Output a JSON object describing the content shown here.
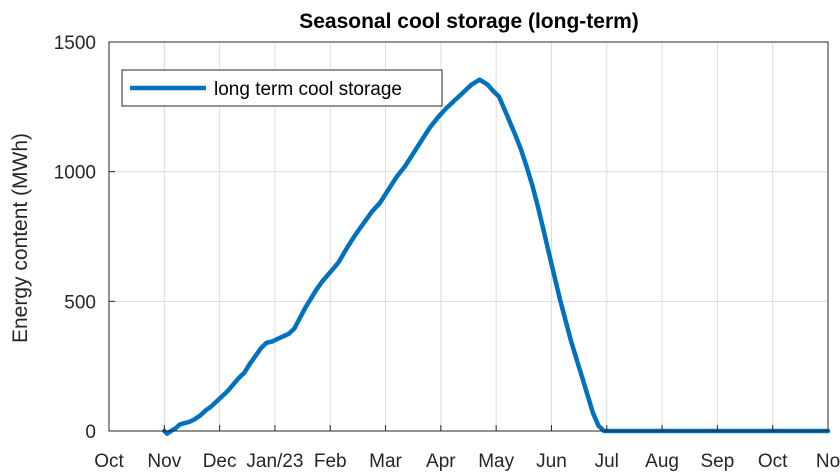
{
  "chart_data": {
    "type": "line",
    "title": "Seasonal cool storage (long-term)",
    "xlabel": "",
    "ylabel": "Energy content (MWh)",
    "ylim": [
      0,
      1500
    ],
    "yticks": [
      0,
      500,
      1000,
      1500
    ],
    "xlim": [
      0,
      13
    ],
    "xtick_labels": [
      "Oct",
      "Nov",
      "Dec",
      "Jan/23",
      "Feb",
      "Mar",
      "Apr",
      "May",
      "Jun",
      "Jul",
      "Aug",
      "Sep",
      "Oct",
      "No"
    ],
    "grid": true,
    "legend": {
      "placement": "top-left",
      "boxed": true
    },
    "series": [
      {
        "name": "long term cool storage",
        "color": "#0072BD",
        "x": [
          1.0,
          1.05,
          1.12,
          1.2,
          1.28,
          1.36,
          1.45,
          1.55,
          1.65,
          1.75,
          1.85,
          1.95,
          2.05,
          2.15,
          2.25,
          2.35,
          2.45,
          2.55,
          2.65,
          2.75,
          2.85,
          2.95,
          3.05,
          3.15,
          3.25,
          3.35,
          3.45,
          3.55,
          3.65,
          3.75,
          3.85,
          3.95,
          4.05,
          4.15,
          4.3,
          4.45,
          4.6,
          4.75,
          4.9,
          5.05,
          5.2,
          5.35,
          5.5,
          5.65,
          5.8,
          5.95,
          6.1,
          6.25,
          6.4,
          6.55,
          6.7,
          6.85,
          6.95,
          7.05,
          7.15,
          7.25,
          7.35,
          7.45,
          7.55,
          7.65,
          7.75,
          7.85,
          7.95,
          8.05,
          8.15,
          8.25,
          8.35,
          8.45,
          8.55,
          8.65,
          8.75,
          8.85,
          8.95,
          9.05,
          9.15,
          9.22,
          9.28,
          9.35,
          9.5,
          10.0,
          10.5,
          11.0,
          11.5,
          12.0,
          12.5,
          13.0
        ],
        "values": [
          0,
          -10,
          0,
          10,
          25,
          30,
          35,
          45,
          60,
          80,
          95,
          115,
          135,
          155,
          180,
          205,
          225,
          260,
          290,
          320,
          340,
          345,
          355,
          365,
          375,
          395,
          435,
          475,
          510,
          545,
          575,
          600,
          625,
          650,
          705,
          755,
          800,
          845,
          880,
          930,
          980,
          1020,
          1070,
          1120,
          1170,
          1210,
          1245,
          1275,
          1305,
          1335,
          1355,
          1335,
          1310,
          1290,
          1240,
          1190,
          1140,
          1085,
          1020,
          950,
          870,
          780,
          690,
          600,
          510,
          430,
          350,
          280,
          210,
          140,
          70,
          20,
          0,
          0,
          0,
          0,
          0,
          0,
          0,
          0,
          0,
          0,
          0,
          0,
          0,
          0
        ]
      }
    ]
  }
}
